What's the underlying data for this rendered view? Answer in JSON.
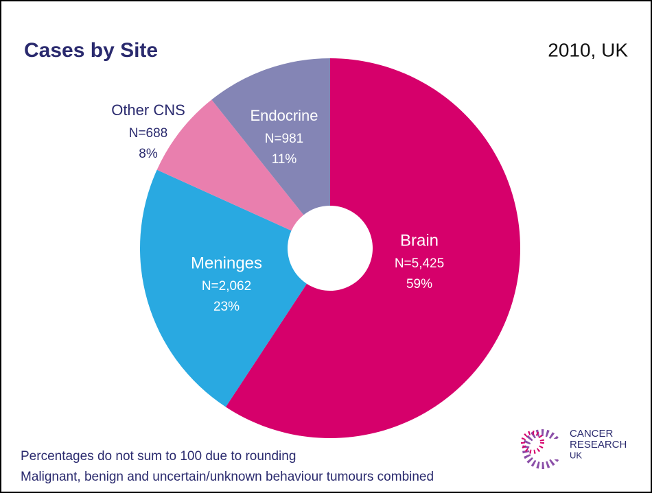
{
  "chart_data": {
    "type": "donut",
    "title": "Cases by Site",
    "subtitle": "2010, UK",
    "categories": [
      "Brain",
      "Meninges",
      "Other CNS",
      "Endocrine"
    ],
    "values": [
      5425,
      2062,
      688,
      981
    ],
    "value_labels": [
      "N=5,425",
      "N=2,062",
      "N=688",
      "N=981"
    ],
    "percent_labels": [
      "59%",
      "23%",
      "8%",
      "11%"
    ],
    "colors": [
      "#d6006b",
      "#29a9e1",
      "#e97fae",
      "#8485b5"
    ],
    "notes": [
      "Percentages do not sum to 100 due to rounding",
      "Malignant, benign and uncertain/unknown behaviour tumours combined"
    ]
  },
  "logo": {
    "lines": [
      "CANCER",
      "RESEARCH",
      "UK"
    ]
  }
}
